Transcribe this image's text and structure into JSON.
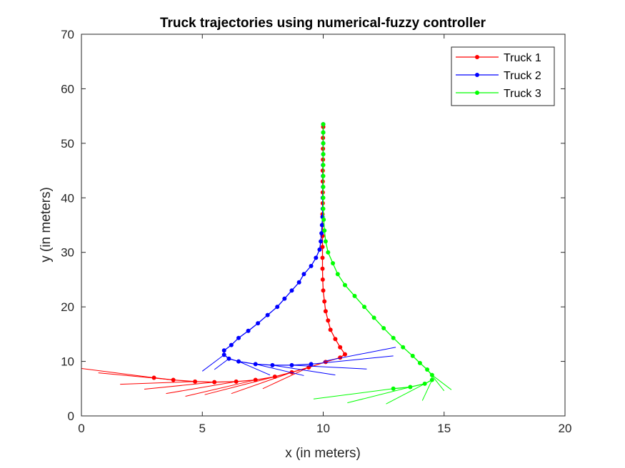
{
  "chart_data": {
    "type": "line",
    "title": "Truck trajectories using numerical-fuzzy controller",
    "xlabel": "x (in meters)",
    "ylabel": "y (in meters)",
    "xlim": [
      0,
      20
    ],
    "ylim": [
      0,
      70
    ],
    "xticks": [
      0,
      5,
      10,
      15,
      20
    ],
    "yticks": [
      0,
      10,
      20,
      30,
      40,
      50,
      60,
      70
    ],
    "xtick_labels": [
      "0",
      "5",
      "10",
      "15",
      "20"
    ],
    "ytick_labels": [
      "0",
      "10",
      "20",
      "30",
      "40",
      "50",
      "60",
      "70"
    ],
    "grid": false,
    "legend_position": "top-right",
    "series": [
      {
        "name": "Truck 1",
        "color": "#ff0000",
        "points": [
          [
            3.0,
            7.0
          ],
          [
            3.8,
            6.6
          ],
          [
            4.7,
            6.3
          ],
          [
            5.5,
            6.2
          ],
          [
            6.4,
            6.3
          ],
          [
            7.2,
            6.6
          ],
          [
            8.0,
            7.2
          ],
          [
            8.7,
            8.0
          ],
          [
            9.4,
            8.9
          ],
          [
            10.1,
            9.9
          ],
          [
            10.7,
            10.7
          ],
          [
            10.9,
            11.3
          ],
          [
            10.7,
            12.6
          ],
          [
            10.5,
            14.1
          ],
          [
            10.3,
            15.8
          ],
          [
            10.2,
            17.5
          ],
          [
            10.1,
            19.2
          ],
          [
            10.05,
            21.0
          ],
          [
            10.0,
            23.0
          ],
          [
            9.98,
            25.0
          ],
          [
            9.97,
            27.0
          ],
          [
            9.97,
            29.0
          ],
          [
            9.97,
            31.0
          ],
          [
            9.97,
            33.0
          ],
          [
            9.97,
            35.0
          ],
          [
            9.97,
            37.0
          ],
          [
            9.98,
            39.0
          ],
          [
            9.98,
            41.0
          ],
          [
            9.98,
            43.0
          ],
          [
            9.98,
            45.0
          ],
          [
            9.99,
            47.0
          ],
          [
            9.99,
            49.0
          ],
          [
            9.99,
            51.0
          ],
          [
            10.0,
            53.0
          ]
        ],
        "headings": [
          [
            3.0,
            7.0,
            0.0,
            8.7
          ],
          [
            3.8,
            6.6,
            0.7,
            7.9
          ],
          [
            4.7,
            6.3,
            1.6,
            5.8
          ],
          [
            5.5,
            6.2,
            2.6,
            4.9
          ],
          [
            6.4,
            6.3,
            3.5,
            4.1
          ],
          [
            7.2,
            6.6,
            4.3,
            3.6
          ],
          [
            8.0,
            7.2,
            5.1,
            3.9
          ],
          [
            8.7,
            8.0,
            6.2,
            4.1
          ],
          [
            9.4,
            8.9,
            7.5,
            5.0
          ]
        ]
      },
      {
        "name": "Truck 2",
        "color": "#0000ff",
        "points": [
          [
            9.5,
            9.5
          ],
          [
            8.7,
            9.3
          ],
          [
            7.9,
            9.3
          ],
          [
            7.2,
            9.5
          ],
          [
            6.5,
            10.0
          ],
          [
            6.1,
            10.5
          ],
          [
            5.9,
            11.2
          ],
          [
            5.9,
            12.0
          ],
          [
            6.2,
            13.0
          ],
          [
            6.5,
            14.3
          ],
          [
            6.9,
            15.6
          ],
          [
            7.3,
            17.0
          ],
          [
            7.7,
            18.5
          ],
          [
            8.1,
            20.0
          ],
          [
            8.4,
            21.5
          ],
          [
            8.7,
            23.0
          ],
          [
            9.0,
            24.5
          ],
          [
            9.2,
            26.0
          ],
          [
            9.5,
            27.5
          ],
          [
            9.7,
            29.0
          ],
          [
            9.85,
            30.5
          ],
          [
            9.9,
            32.0
          ],
          [
            9.93,
            33.5
          ],
          [
            9.95,
            35.0
          ],
          [
            9.97,
            36.5
          ],
          [
            9.98,
            38.0
          ],
          [
            9.98,
            40.0
          ],
          [
            9.99,
            42.0
          ],
          [
            9.99,
            44.0
          ],
          [
            9.99,
            46.0
          ],
          [
            10.0,
            48.0
          ],
          [
            10.0,
            50.0
          ],
          [
            10.0,
            52.0
          ],
          [
            10.0,
            53.5
          ]
        ],
        "headings": [
          [
            10.0,
            10.0,
            13.0,
            12.6
          ],
          [
            9.5,
            9.5,
            12.9,
            11.0
          ],
          [
            8.7,
            9.3,
            11.8,
            8.6
          ],
          [
            7.9,
            9.3,
            10.5,
            7.5
          ],
          [
            7.2,
            9.5,
            9.2,
            7.4
          ],
          [
            6.5,
            10.0,
            7.8,
            7.5
          ],
          [
            6.1,
            10.5,
            5.5,
            8.5
          ],
          [
            5.9,
            11.2,
            5.0,
            8.2
          ]
        ]
      },
      {
        "name": "Truck 3",
        "color": "#00ff00",
        "points": [
          [
            12.9,
            5.0
          ],
          [
            13.6,
            5.3
          ],
          [
            14.2,
            5.9
          ],
          [
            14.5,
            6.6
          ],
          [
            14.5,
            7.5
          ],
          [
            14.3,
            8.5
          ],
          [
            14.0,
            9.7
          ],
          [
            13.7,
            11.0
          ],
          [
            13.3,
            12.6
          ],
          [
            12.9,
            14.3
          ],
          [
            12.5,
            16.1
          ],
          [
            12.1,
            18.0
          ],
          [
            11.7,
            20.0
          ],
          [
            11.3,
            22.0
          ],
          [
            10.9,
            24.0
          ],
          [
            10.6,
            26.0
          ],
          [
            10.4,
            28.0
          ],
          [
            10.2,
            30.0
          ],
          [
            10.1,
            32.0
          ],
          [
            10.05,
            34.0
          ],
          [
            10.02,
            36.0
          ],
          [
            10.0,
            38.0
          ],
          [
            10.0,
            40.0
          ],
          [
            10.0,
            42.0
          ],
          [
            10.0,
            44.0
          ],
          [
            10.0,
            46.0
          ],
          [
            10.0,
            48.0
          ],
          [
            10.0,
            50.0
          ],
          [
            10.0,
            52.0
          ],
          [
            10.0,
            53.5
          ]
        ],
        "headings": [
          [
            12.9,
            5.0,
            9.6,
            3.1
          ],
          [
            13.6,
            5.3,
            11.0,
            2.4
          ],
          [
            14.2,
            5.9,
            12.6,
            2.2
          ],
          [
            14.5,
            6.6,
            14.1,
            2.8
          ],
          [
            14.5,
            7.5,
            15.3,
            4.8
          ],
          [
            14.3,
            8.5,
            15.0,
            4.6
          ]
        ]
      }
    ]
  }
}
